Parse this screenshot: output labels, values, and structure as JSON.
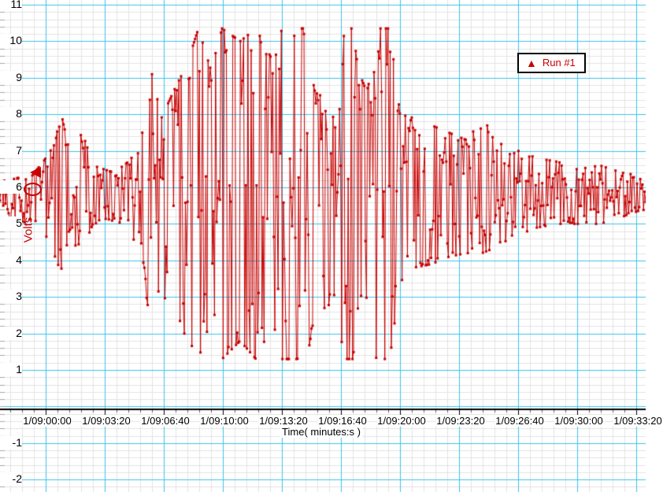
{
  "chart_data": {
    "type": "scatter-line",
    "title": "",
    "xlabel": "Time( minutes:s )",
    "ylabel": "Volts",
    "x_ticks": [
      "1/09:00:00",
      "1/09:03:20",
      "1/09:06:40",
      "1/09:10:00",
      "1/09:13:20",
      "1/09:16:40",
      "1/09:20:00",
      "1/09:23:20",
      "1/09:26:40",
      "1/09:30:00",
      "1/09:33:20"
    ],
    "x_tick_interval_seconds": 200,
    "y_ticks": [
      11,
      10,
      9,
      8,
      7,
      6,
      5,
      4,
      3,
      2,
      1,
      -1,
      -2
    ],
    "ylim_visible": [
      -2.4,
      11.3
    ],
    "grid": "on",
    "legend_position": "top-right",
    "series": [
      {
        "name": "Run #1",
        "color": "#c80000",
        "marker": "dot",
        "legend_marker_glyph": "▲"
      }
    ],
    "baseline": 5.7,
    "clip": [
      1.3,
      10.35
    ],
    "n_points": 600,
    "seed": 7,
    "envelope": [
      {
        "x": 0,
        "lo": 5.2,
        "hi": 6.2
      },
      {
        "x": 40,
        "lo": 5.0,
        "hi": 6.3
      },
      {
        "x": 55,
        "lo": 4.6,
        "hi": 6.7
      },
      {
        "x": 70,
        "lo": 4.1,
        "hi": 7.2
      },
      {
        "x": 77,
        "lo": 3.7,
        "hi": 8.1
      },
      {
        "x": 88,
        "lo": 4.5,
        "hi": 7.0
      },
      {
        "x": 105,
        "lo": 4.3,
        "hi": 7.5
      },
      {
        "x": 118,
        "lo": 5.0,
        "hi": 6.6
      },
      {
        "x": 145,
        "lo": 5.1,
        "hi": 6.4
      },
      {
        "x": 163,
        "lo": 4.8,
        "hi": 6.7
      },
      {
        "x": 178,
        "lo": 4.2,
        "hi": 7.1
      },
      {
        "x": 192,
        "lo": 2.1,
        "hi": 9.2
      },
      {
        "x": 205,
        "lo": 3.2,
        "hi": 7.9
      },
      {
        "x": 222,
        "lo": 2.3,
        "hi": 8.7
      },
      {
        "x": 238,
        "lo": 1.9,
        "hi": 9.4
      },
      {
        "x": 252,
        "lo": 1.3,
        "hi": 10.35
      },
      {
        "x": 268,
        "lo": 2.4,
        "hi": 9.2
      },
      {
        "x": 282,
        "lo": 1.3,
        "hi": 10.35
      },
      {
        "x": 305,
        "lo": 1.8,
        "hi": 10.0
      },
      {
        "x": 325,
        "lo": 1.3,
        "hi": 10.35
      },
      {
        "x": 348,
        "lo": 2.2,
        "hi": 9.4
      },
      {
        "x": 358,
        "lo": 1.3,
        "hi": 10.35
      },
      {
        "x": 390,
        "lo": 1.3,
        "hi": 10.35
      },
      {
        "x": 400,
        "lo": 2.6,
        "hi": 8.6
      },
      {
        "x": 425,
        "lo": 2.8,
        "hi": 8.3
      },
      {
        "x": 438,
        "lo": 1.3,
        "hi": 10.35
      },
      {
        "x": 448,
        "lo": 1.3,
        "hi": 10.35
      },
      {
        "x": 455,
        "lo": 2.6,
        "hi": 9.2
      },
      {
        "x": 466,
        "lo": 3.0,
        "hi": 8.6
      },
      {
        "x": 478,
        "lo": 1.3,
        "hi": 10.35
      },
      {
        "x": 495,
        "lo": 1.3,
        "hi": 10.35
      },
      {
        "x": 508,
        "lo": 3.4,
        "hi": 8.0
      },
      {
        "x": 525,
        "lo": 3.8,
        "hi": 7.9
      },
      {
        "x": 548,
        "lo": 3.9,
        "hi": 7.7
      },
      {
        "x": 570,
        "lo": 4.1,
        "hi": 7.5
      },
      {
        "x": 592,
        "lo": 4.2,
        "hi": 7.3
      },
      {
        "x": 612,
        "lo": 4.2,
        "hi": 7.9
      },
      {
        "x": 635,
        "lo": 4.4,
        "hi": 7.2
      },
      {
        "x": 658,
        "lo": 4.7,
        "hi": 7.0
      },
      {
        "x": 682,
        "lo": 4.9,
        "hi": 6.8
      },
      {
        "x": 708,
        "lo": 5.0,
        "hi": 6.7
      },
      {
        "x": 735,
        "lo": 5.0,
        "hi": 6.5
      },
      {
        "x": 762,
        "lo": 5.0,
        "hi": 6.6
      },
      {
        "x": 790,
        "lo": 5.2,
        "hi": 6.4
      },
      {
        "x": 820,
        "lo": 5.2,
        "hi": 6.3
      }
    ],
    "markers": {
      "level_cursor_value": 6.4,
      "circle_marker_value": 5.95
    },
    "colors": {
      "trace": "#c80000",
      "grid_major": "#3cc3ec",
      "grid_minor": "#e3e3e3",
      "axis": "#000000",
      "left_ticks": "#a8a8a8",
      "bottom_minor_ticks": "#606060"
    }
  }
}
